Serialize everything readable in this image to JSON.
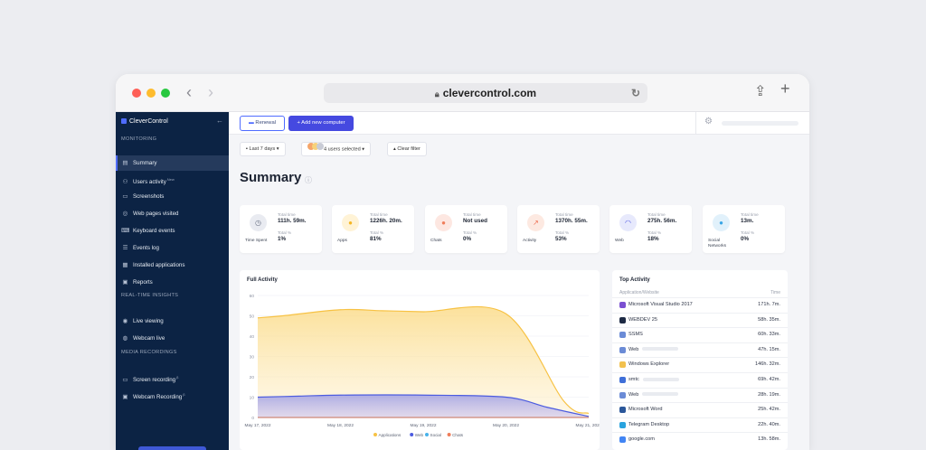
{
  "browser": {
    "url": "clevercontrol.com",
    "back_icon": "chevron-left-icon",
    "forward_icon": "chevron-right-icon",
    "lock_icon": "lock-icon",
    "reload_icon": "reload-icon",
    "share_icon": "share-icon",
    "new_tab_icon": "plus-icon",
    "traffic_colors": [
      "#fe5f57",
      "#febc2e",
      "#28c840"
    ]
  },
  "sidebar": {
    "brand": "CleverControl",
    "collapse_icon": "arrow-left-icon",
    "sections": {
      "monitoring": "MONITORING",
      "realtime": "REAL-TIME INSIGHTS",
      "media": "MEDIA RECORDINGS"
    },
    "items": [
      {
        "label": "Summary",
        "icon": "summary-icon",
        "glyph": "▤",
        "active": true
      },
      {
        "label": "Users activity",
        "icon": "users-icon",
        "glyph": "⚇",
        "badge": "New"
      },
      {
        "label": "Screenshots",
        "icon": "monitor-icon",
        "glyph": "▭"
      },
      {
        "label": "Web pages visited",
        "icon": "globe-icon",
        "glyph": "◎"
      },
      {
        "label": "Keyboard events",
        "icon": "keyboard-icon",
        "glyph": "⌨"
      },
      {
        "label": "Events log",
        "icon": "list-icon",
        "glyph": "☰"
      },
      {
        "label": "Installed applications",
        "icon": "apps-icon",
        "glyph": "▦"
      },
      {
        "label": "Reports",
        "icon": "report-icon",
        "glyph": "▣"
      },
      {
        "label": "Live viewing",
        "icon": "eye-icon",
        "glyph": "◉"
      },
      {
        "label": "Webcam live",
        "icon": "webcam-icon",
        "glyph": "◍"
      },
      {
        "label": "Screen recording",
        "icon": "screen-record-icon",
        "glyph": "▭",
        "badge": "β"
      },
      {
        "label": "Webcam Recording",
        "icon": "webcam-record-icon",
        "glyph": "▣",
        "badge": "β"
      }
    ]
  },
  "toolbar": {
    "renewal_label": "Renewal",
    "add_label": "+ Add new computer",
    "gear_icon": "gear-icon"
  },
  "filters": {
    "period": "Last 7 days",
    "users": "4 users selected",
    "clear": "Clear filter"
  },
  "page": {
    "title": "Summary",
    "info_icon": "info-icon"
  },
  "cards": [
    {
      "name": "Time Spent",
      "icon": "clock-icon",
      "glyph": "◷",
      "bg": "#e9ebf1",
      "fg": "#6c7386",
      "label1": "Total time",
      "value1": "111h. 59m.",
      "label2": "Total %",
      "value2": "1%"
    },
    {
      "name": "Apps",
      "icon": "apps-icon",
      "glyph": "●",
      "bg": "#fff3d6",
      "fg": "#f5b623",
      "label1": "Total time",
      "value1": "1226h. 20m.",
      "label2": "Total %",
      "value2": "81%"
    },
    {
      "name": "Chats",
      "icon": "chat-icon",
      "glyph": "●",
      "bg": "#fde7e1",
      "fg": "#ef7d5a",
      "label1": "Total time",
      "value1": "Not used",
      "label2": "Total %",
      "value2": "0%"
    },
    {
      "name": "Activity",
      "icon": "activity-icon",
      "glyph": "↗",
      "bg": "#fde9e1",
      "fg": "#ee6b4d",
      "label1": "Total time",
      "value1": "1370h. 55m.",
      "label2": "Total %",
      "value2": "53%"
    },
    {
      "name": "Web",
      "icon": "wifi-icon",
      "glyph": "◠",
      "bg": "#e7e9fc",
      "fg": "#4c54e3",
      "label1": "Total time",
      "value1": "275h. 56m.",
      "label2": "Total %",
      "value2": "18%"
    },
    {
      "name": "Social Networks",
      "icon": "social-icon",
      "glyph": "●",
      "bg": "#e1f1fb",
      "fg": "#3aa6e6",
      "label1": "Total time",
      "value1": "13m.",
      "label2": "Total %",
      "value2": "0%"
    }
  ],
  "full_activity": {
    "title": "Full Activity"
  },
  "chart_data": {
    "type": "area",
    "title": "Full Activity",
    "xlabel": "",
    "ylabel": "",
    "ylim": [
      0,
      60
    ],
    "yticks": [
      0,
      10,
      20,
      30,
      40,
      50,
      60
    ],
    "x": [
      "May 17, 2022",
      "May 18, 2022",
      "May 19, 2022",
      "May 20, 2022",
      "May 21, 2022"
    ],
    "x_positions": [
      0,
      1,
      2,
      3,
      4
    ],
    "grid": true,
    "legend_placement": "bottom",
    "series": [
      {
        "name": "Applications",
        "color": "#f7c244",
        "x": [
          0,
          0.3,
          1,
          1.5,
          2,
          3,
          3.7,
          4
        ],
        "values": [
          49,
          50,
          53,
          52.5,
          52,
          51,
          8,
          2
        ]
      },
      {
        "name": "Web",
        "color": "#4b5be0",
        "x": [
          0,
          0.5,
          1,
          2,
          3,
          3.5,
          4
        ],
        "values": [
          10,
          10.5,
          11,
          11,
          10,
          5,
          0.5
        ]
      },
      {
        "name": "Social",
        "color": "#48b3ea",
        "x": [
          0,
          4
        ],
        "values": [
          0,
          0
        ]
      },
      {
        "name": "Chats",
        "color": "#ef7d5a",
        "x": [
          0,
          4
        ],
        "values": [
          0,
          0
        ]
      }
    ]
  },
  "top_activity": {
    "title": "Top Activity",
    "col_name": "Application/Website",
    "col_time": "Time",
    "rows": [
      {
        "name": "Microsoft Visual Studio 2017",
        "time": "171h. 7m.",
        "icon": "visual-studio-icon",
        "color": "#7a4fd1",
        "blurred": false
      },
      {
        "name": "WEBDEV 25",
        "time": "58h. 35m.",
        "icon": "webdev-icon",
        "color": "#1d2a44",
        "blurred": false
      },
      {
        "name": "SSMS",
        "time": "60h. 33m.",
        "icon": "ssms-icon",
        "color": "#6b8bd6",
        "blurred": false
      },
      {
        "name": "Web",
        "time": "47h. 15m.",
        "icon": "web-icon",
        "color": "#6b8bd6",
        "blurred": true
      },
      {
        "name": "Windows Explorer",
        "time": "146h. 32m.",
        "icon": "folder-icon",
        "color": "#f2c14e",
        "blurred": false
      },
      {
        "name": "smtc",
        "time": "69h. 42m.",
        "icon": "help-icon",
        "color": "#3f6fd8",
        "blurred": true
      },
      {
        "name": "Web",
        "time": "28h. 19m.",
        "icon": "web-icon",
        "color": "#6b8bd6",
        "blurred": true
      },
      {
        "name": "Microsoft Word",
        "time": "25h. 42m.",
        "icon": "word-icon",
        "color": "#2b579a",
        "blurred": false
      },
      {
        "name": "Telegram Desktop",
        "time": "22h. 40m.",
        "icon": "telegram-icon",
        "color": "#2aa3de",
        "blurred": false
      },
      {
        "name": "google.com",
        "time": "13h. 58m.",
        "icon": "google-icon",
        "color": "#4285f4",
        "blurred": false
      }
    ]
  }
}
